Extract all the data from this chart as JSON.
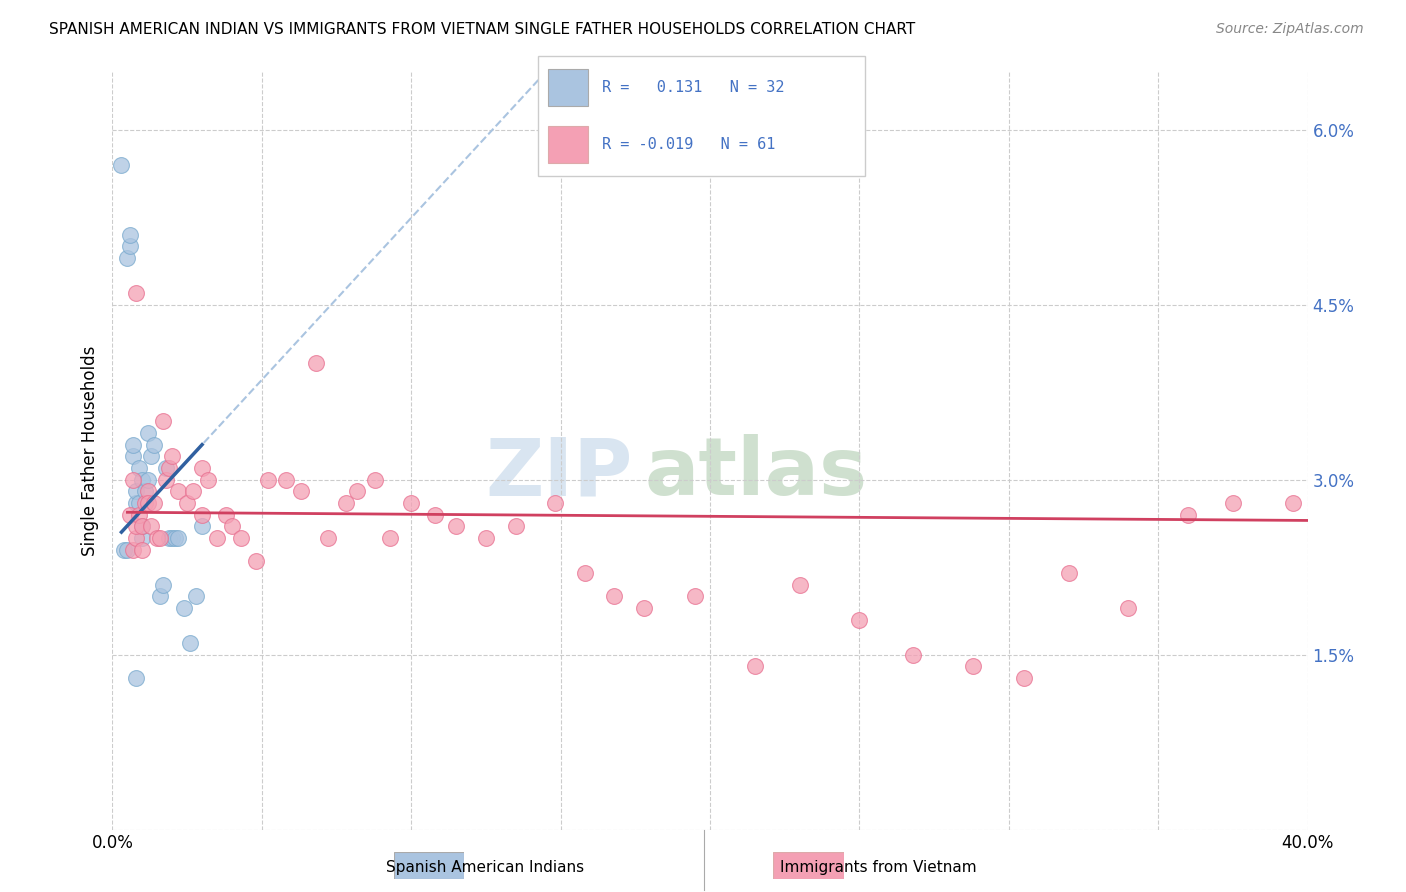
{
  "title": "SPANISH AMERICAN INDIAN VS IMMIGRANTS FROM VIETNAM SINGLE FATHER HOUSEHOLDS CORRELATION CHART",
  "source": "Source: ZipAtlas.com",
  "ylabel": "Single Father Households",
  "r1": 0.131,
  "n1": 32,
  "r2": -0.019,
  "n2": 61,
  "blue_color": "#aac4e0",
  "blue_edge_color": "#7aaace",
  "pink_color": "#f4a0b4",
  "pink_edge_color": "#e87090",
  "blue_line_color": "#3060a0",
  "pink_line_color": "#d04060",
  "blue_dashed_color": "#aac4e0",
  "grid_color": "#cccccc",
  "xlim": [
    0.0,
    0.4
  ],
  "ylim": [
    0.0,
    0.065
  ],
  "ytick_vals": [
    0.0,
    0.015,
    0.03,
    0.045,
    0.06
  ],
  "ytick_labels": [
    "",
    "1.5%",
    "3.0%",
    "4.5%",
    "6.0%"
  ],
  "legend_label1": "Spanish American Indians",
  "legend_label2": "Immigrants from Vietnam",
  "blue_x": [
    0.003,
    0.005,
    0.006,
    0.006,
    0.007,
    0.007,
    0.008,
    0.008,
    0.009,
    0.009,
    0.01,
    0.01,
    0.01,
    0.011,
    0.012,
    0.012,
    0.013,
    0.014,
    0.016,
    0.017,
    0.018,
    0.019,
    0.02,
    0.021,
    0.022,
    0.024,
    0.026,
    0.028,
    0.03,
    0.004,
    0.005,
    0.008
  ],
  "blue_y": [
    0.057,
    0.049,
    0.05,
    0.051,
    0.032,
    0.033,
    0.028,
    0.029,
    0.028,
    0.031,
    0.025,
    0.026,
    0.03,
    0.029,
    0.03,
    0.034,
    0.032,
    0.033,
    0.02,
    0.021,
    0.031,
    0.025,
    0.025,
    0.025,
    0.025,
    0.019,
    0.016,
    0.02,
    0.026,
    0.024,
    0.024,
    0.013
  ],
  "pink_x": [
    0.006,
    0.007,
    0.007,
    0.008,
    0.008,
    0.009,
    0.01,
    0.01,
    0.011,
    0.012,
    0.012,
    0.013,
    0.014,
    0.015,
    0.016,
    0.017,
    0.018,
    0.019,
    0.02,
    0.022,
    0.025,
    0.027,
    0.03,
    0.03,
    0.032,
    0.035,
    0.038,
    0.04,
    0.043,
    0.048,
    0.052,
    0.058,
    0.063,
    0.068,
    0.072,
    0.078,
    0.082,
    0.088,
    0.093,
    0.1,
    0.108,
    0.115,
    0.125,
    0.135,
    0.148,
    0.158,
    0.168,
    0.178,
    0.195,
    0.215,
    0.23,
    0.25,
    0.268,
    0.288,
    0.305,
    0.32,
    0.34,
    0.36,
    0.375,
    0.395,
    0.008
  ],
  "pink_y": [
    0.027,
    0.03,
    0.024,
    0.025,
    0.026,
    0.027,
    0.026,
    0.024,
    0.028,
    0.029,
    0.028,
    0.026,
    0.028,
    0.025,
    0.025,
    0.035,
    0.03,
    0.031,
    0.032,
    0.029,
    0.028,
    0.029,
    0.027,
    0.031,
    0.03,
    0.025,
    0.027,
    0.026,
    0.025,
    0.023,
    0.03,
    0.03,
    0.029,
    0.04,
    0.025,
    0.028,
    0.029,
    0.03,
    0.025,
    0.028,
    0.027,
    0.026,
    0.025,
    0.026,
    0.028,
    0.022,
    0.02,
    0.019,
    0.02,
    0.014,
    0.021,
    0.018,
    0.015,
    0.014,
    0.013,
    0.022,
    0.019,
    0.027,
    0.028,
    0.028,
    0.046
  ]
}
